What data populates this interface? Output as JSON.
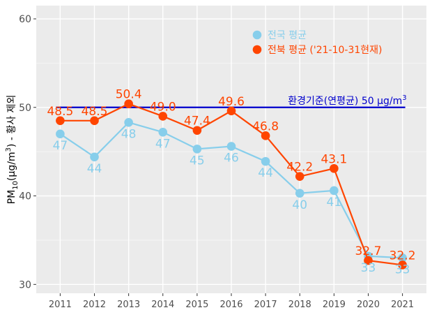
{
  "chart_data": {
    "type": "line",
    "categories": [
      "2011",
      "2012",
      "2013",
      "2014",
      "2015",
      "2016",
      "2017",
      "2018",
      "2019",
      "2020",
      "2021"
    ],
    "ylim": [
      29,
      61.5
    ],
    "y_ticks": [
      30,
      40,
      50,
      60
    ],
    "ylabel_main": "PM",
    "ylabel_sub": "10",
    "ylabel_units": "(μg/m",
    "ylabel_sup": "3",
    "ylabel_tail": ") - 황사 제외",
    "grid": true,
    "legend_position": "top-right",
    "series": [
      {
        "name": "전국 평균",
        "color": "#87CEEB",
        "values": [
          47.0,
          44.4,
          48.3,
          47.2,
          45.3,
          45.6,
          43.9,
          40.3,
          40.6,
          33.2,
          33.0
        ],
        "labels": [
          "47",
          "44",
          "48",
          "47",
          "45",
          "46",
          "44",
          "40",
          "41",
          "33",
          "33"
        ],
        "label_pos": "below"
      },
      {
        "name": "전북 평균 ('21-10-31현재)",
        "color": "#FF4500",
        "values": [
          48.5,
          48.5,
          50.4,
          49.0,
          47.4,
          49.6,
          46.8,
          42.2,
          43.1,
          32.7,
          32.2
        ],
        "labels": [
          "48.5",
          "48.5",
          "50.4",
          "49.0",
          "47.4",
          "49.6",
          "46.8",
          "42.2",
          "43.1",
          "32.7",
          "32.2"
        ],
        "label_pos": "above"
      }
    ],
    "reference_line": {
      "value": 50,
      "color": "#0000CD",
      "label_text": "환경기준(연평균) 50 μg/m",
      "label_sup": "3"
    }
  }
}
